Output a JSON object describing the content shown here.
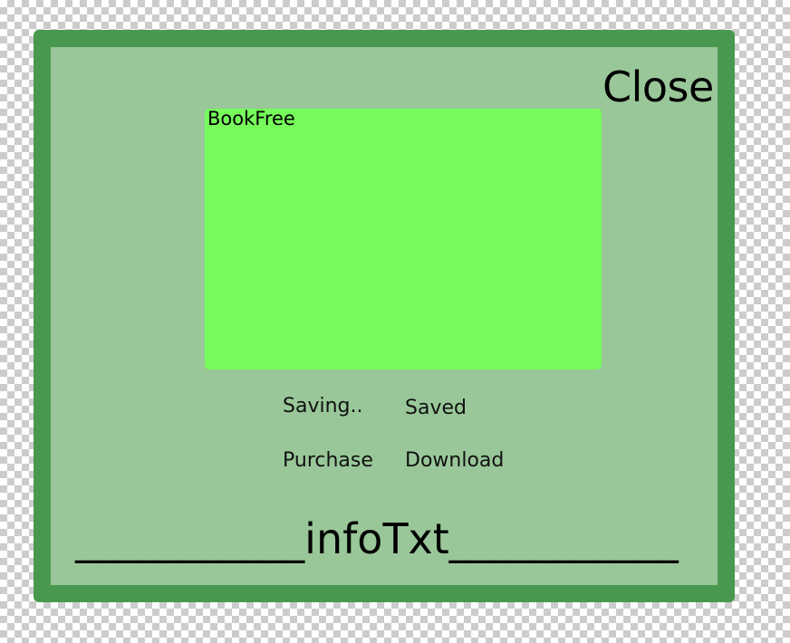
{
  "dialog": {
    "close_label": "Close",
    "book_label": "BookFree",
    "status": {
      "saving": "Saving..",
      "saved": "Saved"
    },
    "actions": {
      "purchase": "Purchase",
      "download": "Download"
    },
    "info_text": "___________infoTxt___________"
  },
  "colors": {
    "frame": "#48994f",
    "panel": "#99c799",
    "book_area": "#76fb5b"
  }
}
